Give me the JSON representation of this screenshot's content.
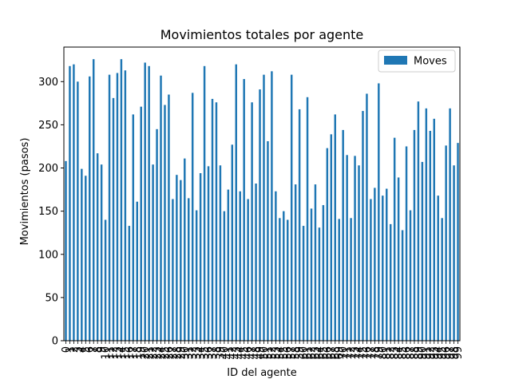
{
  "chart_data": {
    "type": "bar",
    "title": "Movimientos totales por agente",
    "xlabel": "ID del agente",
    "ylabel": "Movimientos (pasos)",
    "ylim": [
      0,
      340
    ],
    "yticks": [
      0,
      50,
      100,
      150,
      200,
      250,
      300
    ],
    "grid": false,
    "legend_position": "top-right",
    "bar_color": "#1f77b4",
    "categories": [
      "0",
      "1",
      "2",
      "3",
      "4",
      "5",
      "6",
      "7",
      "8",
      "9",
      "10",
      "11",
      "12",
      "13",
      "14",
      "15",
      "16",
      "17",
      "18",
      "19",
      "20",
      "21",
      "22",
      "23",
      "24",
      "25",
      "26",
      "27",
      "28",
      "29",
      "30",
      "31",
      "32",
      "33",
      "34",
      "35",
      "36",
      "37",
      "38",
      "39",
      "40",
      "41",
      "42",
      "43",
      "44",
      "45",
      "46",
      "47",
      "48",
      "49",
      "50",
      "51",
      "52",
      "53",
      "54",
      "55",
      "56",
      "57",
      "58",
      "59",
      "60",
      "61",
      "62",
      "63",
      "64",
      "65",
      "66",
      "67",
      "68",
      "69",
      "70",
      "71",
      "72",
      "73",
      "74",
      "75",
      "76",
      "77",
      "78",
      "79",
      "80",
      "81",
      "82",
      "83",
      "84",
      "85",
      "86",
      "87",
      "88",
      "89",
      "90",
      "91",
      "92",
      "93",
      "94",
      "95",
      "96",
      "97",
      "98",
      "99"
    ],
    "series": [
      {
        "name": "Moves",
        "values": [
          208,
          318,
          320,
          300,
          199,
          191,
          306,
          326,
          217,
          204,
          140,
          308,
          281,
          310,
          326,
          313,
          133,
          262,
          161,
          271,
          322,
          318,
          204,
          245,
          307,
          273,
          285,
          164,
          192,
          186,
          211,
          165,
          287,
          151,
          194,
          318,
          202,
          280,
          276,
          203,
          150,
          175,
          227,
          320,
          173,
          303,
          164,
          276,
          182,
          291,
          308,
          231,
          312,
          173,
          142,
          150,
          140,
          308,
          181,
          268,
          133,
          282,
          153,
          181,
          131,
          157,
          223,
          239,
          262,
          141,
          244,
          215,
          142,
          214,
          203,
          266,
          286,
          164,
          177,
          298,
          168,
          176,
          135,
          235,
          189,
          128,
          225,
          151,
          244,
          277,
          207,
          269,
          243,
          257,
          168,
          142,
          226,
          269,
          203,
          229
        ]
      }
    ]
  }
}
